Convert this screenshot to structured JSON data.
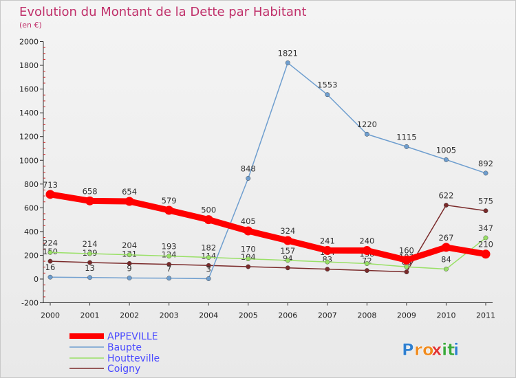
{
  "chart_data": {
    "type": "line",
    "title": "Evolution du Montant de la Dette par Habitant",
    "subtitle": "(en €)",
    "x": [
      "2000",
      "2001",
      "2002",
      "2003",
      "2004",
      "2005",
      "2006",
      "2007",
      "2008",
      "2009",
      "2010",
      "2011"
    ],
    "ylim": [
      -200,
      2000
    ],
    "yticks": [
      "-200",
      "0",
      "200",
      "400",
      "600",
      "800",
      "1000",
      "1200",
      "1400",
      "1600",
      "1800",
      "2000"
    ],
    "grid": false,
    "legend_position": "bottom-left",
    "series": [
      {
        "name": "APPEVILLE",
        "color": "#ff0000",
        "values": [
          713,
          658,
          654,
          579,
          500,
          405,
          324,
          241,
          240,
          160,
          267,
          210
        ],
        "labels": [
          "713",
          "658",
          "654",
          "579",
          "500",
          "405",
          "324",
          "241",
          "240",
          "160",
          "267",
          "210"
        ]
      },
      {
        "name": "Baupte",
        "color": "#6e9ecf",
        "values": [
          16,
          13,
          9,
          7,
          3,
          848,
          1821,
          1553,
          1220,
          1115,
          1005,
          892
        ],
        "labels": [
          "16",
          "13",
          "9",
          "7",
          "3",
          "848",
          "1821",
          "1553",
          "1220",
          "1115",
          "1005",
          "892"
        ]
      },
      {
        "name": "Houtteville",
        "color": "#99e066",
        "values": [
          224,
          214,
          204,
          193,
          182,
          170,
          157,
          144,
          130,
          103,
          84,
          347
        ],
        "labels": [
          "224",
          "214",
          "204",
          "193",
          "182",
          "170",
          "157",
          "144",
          "130",
          "103",
          "84",
          "347"
        ]
      },
      {
        "name": "Coigny",
        "color": "#7a2a2a",
        "values": [
          150,
          139,
          131,
          124,
          114,
          104,
          94,
          83,
          72,
          60,
          622,
          575
        ],
        "labels": [
          "150",
          "139",
          "131",
          "124",
          "114",
          "104",
          "94",
          "83",
          "72",
          "60",
          "622",
          "575"
        ]
      }
    ]
  },
  "brand": {
    "logo_text": "Proxiti",
    "letters": [
      "P",
      "r",
      "o",
      "x",
      "i",
      "t",
      "i"
    ],
    "colors": [
      "#2e7fd0",
      "#f08a1c",
      "#f08a1c",
      "#e03535",
      "#39a83a",
      "#39a83a",
      "#2e7fd0"
    ]
  }
}
